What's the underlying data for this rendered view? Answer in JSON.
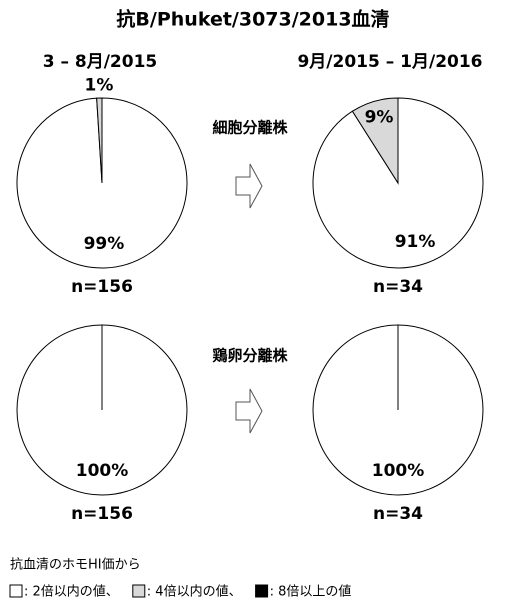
{
  "title": "抗B/Phuket/3073/2013血清",
  "periods": [
    "3 – 8月/2015",
    "9月/2015 – 1月/2016"
  ],
  "rows": [
    "細胞分離株",
    "鶏卵分離株"
  ],
  "chart_data": [
    {
      "type": "pie",
      "values": [
        99,
        1
      ],
      "value_labels": [
        "99%",
        "1%"
      ],
      "colors": [
        "#ffffff",
        "#d9d9d9"
      ],
      "n_label": "n=156"
    },
    {
      "type": "pie",
      "values": [
        91,
        9
      ],
      "value_labels": [
        "91%",
        "9%"
      ],
      "colors": [
        "#ffffff",
        "#d9d9d9"
      ],
      "n_label": "n=34"
    },
    {
      "type": "pie",
      "values": [
        100
      ],
      "value_labels": [
        "100%"
      ],
      "colors": [
        "#ffffff"
      ],
      "n_label": "n=156"
    },
    {
      "type": "pie",
      "values": [
        100
      ],
      "value_labels": [
        "100%"
      ],
      "colors": [
        "#ffffff"
      ],
      "n_label": "n=34"
    }
  ],
  "legend": {
    "title": "抗血清のホモHI価から",
    "items": [
      {
        "label": ": 2倍以内の値、",
        "color": "#ffffff"
      },
      {
        "label": ": 4倍以内の値、",
        "color": "#d9d9d9"
      },
      {
        "label": ": 8倍以上の値",
        "color": "#000000"
      }
    ]
  }
}
